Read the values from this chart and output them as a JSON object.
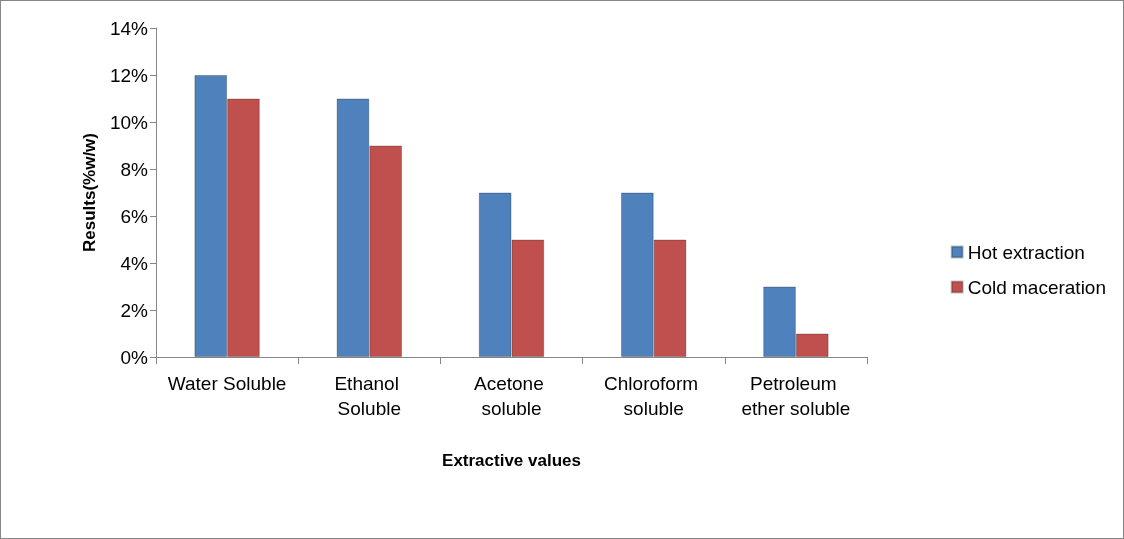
{
  "chart_data": {
    "type": "bar",
    "xlabel": "Extractive values",
    "ylabel": "Results(%w/w)",
    "categories": [
      "Water Soluble",
      "Ethanol Soluble",
      "Acetone soluble",
      "Chloroform soluble",
      "Petroleum ether soluble"
    ],
    "series": [
      {
        "name": "Hot extraction",
        "color": "#4f81bd",
        "values": [
          12,
          11,
          7,
          7,
          3
        ]
      },
      {
        "name": "Cold maceration",
        "color": "#c0504d",
        "values": [
          11,
          9,
          5,
          5,
          1
        ]
      }
    ],
    "ylim": [
      0,
      14
    ],
    "yticks": [
      {
        "value": 0,
        "label": "0%"
      },
      {
        "value": 2,
        "label": "2%"
      },
      {
        "value": 4,
        "label": "4%"
      },
      {
        "value": 6,
        "label": "6%"
      },
      {
        "value": 8,
        "label": "8%"
      },
      {
        "value": 10,
        "label": "10%"
      },
      {
        "value": 12,
        "label": "12%"
      },
      {
        "value": 14,
        "label": "14%"
      }
    ],
    "grid": false,
    "legend": "right"
  }
}
